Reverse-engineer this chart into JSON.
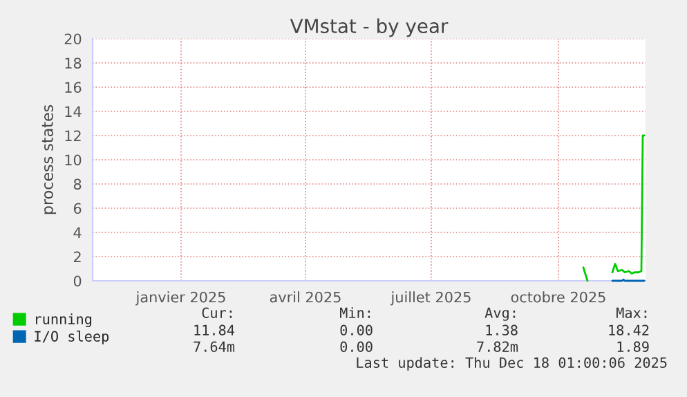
{
  "chart_data": {
    "type": "line",
    "title": "VMstat - by year",
    "ylabel": "process states",
    "xlim": [
      "2024-11-13",
      "2025-12-18"
    ],
    "xticks": [
      {
        "value": "2025-01-16",
        "label": "janvier 2025"
      },
      {
        "value": "2025-04-16",
        "label": "avril 2025"
      },
      {
        "value": "2025-07-16",
        "label": "juillet 2025"
      },
      {
        "value": "2025-10-16",
        "label": "octobre 2025"
      }
    ],
    "ylim": [
      0,
      20
    ],
    "yticks": [
      0,
      2,
      4,
      6,
      8,
      10,
      12,
      14,
      16,
      18,
      20
    ],
    "grid": true,
    "legend": "bottom left",
    "series": [
      {
        "name": "running",
        "color": "#00cc00",
        "x": [
          "2025-11-03",
          "2025-11-06",
          "2025-11-15",
          "2025-11-24",
          "2025-11-26",
          "2025-11-28",
          "2025-12-01",
          "2025-12-03",
          "2025-12-06",
          "2025-12-08",
          "2025-12-10",
          "2025-12-13",
          "2025-12-15",
          "2025-12-16",
          "2025-12-17"
        ],
        "values": [
          1.1,
          0,
          null,
          0.7,
          1.4,
          0.8,
          0.9,
          0.7,
          0.8,
          0.6,
          0.7,
          0.7,
          0.8,
          12,
          12
        ]
      },
      {
        "name": "I/O sleep",
        "color": "#0066b3",
        "x": [
          "2025-11-24",
          "2025-12-01",
          "2025-12-02",
          "2025-12-03",
          "2025-12-10",
          "2025-12-17"
        ],
        "values": [
          0,
          0,
          0.1,
          0,
          0,
          0
        ]
      }
    ],
    "annotations": [
      "Cur:",
      "Min:",
      "Avg:",
      "Max:",
      "11.84",
      "0.00",
      "1.38",
      "18.42",
      "7.64m",
      "0.00",
      "7.82m",
      "1.89",
      "Last update: Thu Dec 18 01:00:06 2025"
    ]
  }
}
